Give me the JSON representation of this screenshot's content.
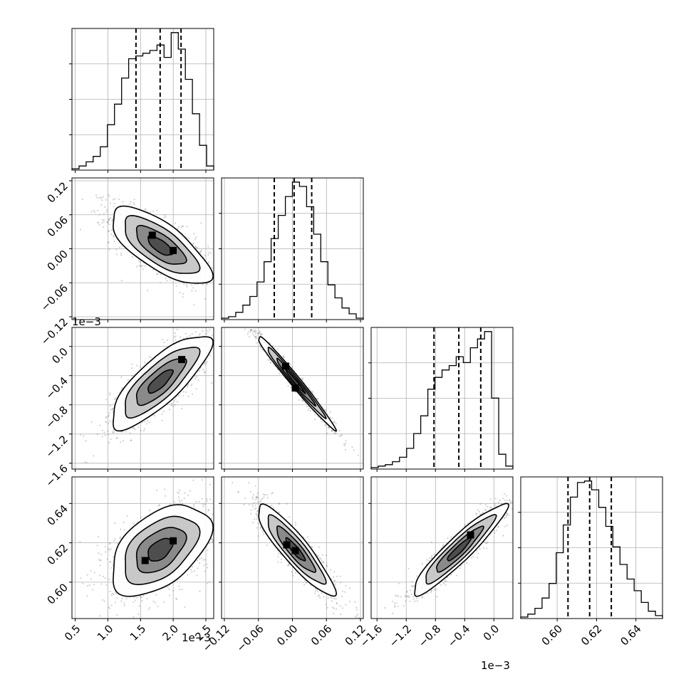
{
  "chart_data": {
    "type": "corner",
    "parameters": [
      {
        "range": [
          0.45,
          2.62
        ],
        "ticks": [
          "0.5",
          "1.0",
          "1.5",
          "2.0",
          "2.5"
        ],
        "tick_values": [
          0.5,
          1.0,
          1.5,
          2.0,
          2.5
        ],
        "offset_label": "1e−3",
        "quantiles": [
          1.43,
          1.8,
          2.12
        ]
      },
      {
        "range": [
          -0.125,
          0.125
        ],
        "ticks": [
          "−0.12",
          "−0.06",
          "0.00",
          "0.06",
          "0.12"
        ],
        "tick_values": [
          -0.12,
          -0.06,
          0.0,
          0.06,
          0.12
        ],
        "offset_label": "",
        "quantiles": [
          -0.032,
          0.003,
          0.034
        ]
      },
      {
        "range": [
          -1.68,
          0.26
        ],
        "ticks": [
          "−1.6",
          "−1.2",
          "−0.8",
          "−0.4",
          "0.0"
        ],
        "tick_values": [
          -1.6,
          -1.2,
          -0.8,
          -0.4,
          0.0
        ],
        "offset_label": "1e−3",
        "quantiles": [
          -0.82,
          -0.48,
          -0.18
        ]
      },
      {
        "range": [
          0.5815,
          0.6535
        ],
        "ticks": [
          "0.60",
          "0.62",
          "0.64"
        ],
        "tick_values": [
          0.6,
          0.62,
          0.64
        ],
        "offset_label": "",
        "quantiles": [
          0.6055,
          0.6165,
          0.6275
        ]
      }
    ],
    "histograms": [
      {
        "edges": [
          0.45,
          0.5585,
          0.667,
          0.7755,
          0.884,
          0.9925,
          1.101,
          1.2095,
          1.318,
          1.4265,
          1.535,
          1.6435,
          1.752,
          1.8605,
          1.969,
          2.0775,
          2.186,
          2.2945,
          2.403,
          2.5115,
          2.62
        ],
        "counts": [
          1,
          3,
          6,
          10,
          17,
          33,
          48,
          67,
          81,
          83,
          85,
          87,
          91,
          82,
          100,
          88,
          66,
          41,
          18,
          3
        ]
      },
      {
        "edges": [
          -0.125,
          -0.1125,
          -0.1,
          -0.0875,
          -0.075,
          -0.0625,
          -0.05,
          -0.0375,
          -0.025,
          -0.0125,
          0.0,
          0.0125,
          0.025,
          0.0375,
          0.05,
          0.0625,
          0.075,
          0.0875,
          0.1,
          0.1125,
          0.125
        ],
        "counts": [
          1,
          2,
          5,
          10,
          16,
          26,
          40,
          56,
          72,
          85,
          95,
          92,
          78,
          59,
          40,
          24,
          15,
          8,
          4,
          1
        ]
      },
      {
        "edges": [
          -1.68,
          -1.583,
          -1.486,
          -1.389,
          -1.292,
          -1.195,
          -1.098,
          -1.001,
          -0.904,
          -0.807,
          -0.71,
          -0.613,
          -0.516,
          -0.419,
          -0.322,
          -0.225,
          -0.128,
          -0.031,
          0.066,
          0.163,
          0.26
        ],
        "counts": [
          1,
          2,
          3,
          5,
          8,
          14,
          24,
          36,
          54,
          62,
          67,
          70,
          76,
          72,
          82,
          88,
          93,
          48,
          10,
          2
        ]
      },
      {
        "edges": [
          0.5815,
          0.5851,
          0.5887,
          0.5923,
          0.5959,
          0.5995,
          0.6031,
          0.6067,
          0.6103,
          0.6139,
          0.6175,
          0.6211,
          0.6247,
          0.6283,
          0.6319,
          0.6355,
          0.6391,
          0.6427,
          0.6463,
          0.6499,
          0.6535
        ],
        "counts": [
          1,
          3,
          7,
          14,
          24,
          45,
          64,
          83,
          93,
          94,
          88,
          76,
          63,
          49,
          37,
          27,
          19,
          11,
          5,
          2
        ]
      }
    ],
    "pairs": [
      {
        "row": 1,
        "col": 0,
        "mean": [
          1.8,
          0.005
        ],
        "sd": [
          0.38,
          0.034
        ],
        "rho": -0.72,
        "modes": [
          [
            1.68,
            0.024
          ],
          [
            2.0,
            -0.003
          ]
        ]
      },
      {
        "row": 2,
        "col": 0,
        "mean": [
          1.8,
          -0.48
        ],
        "sd": [
          0.38,
          0.32
        ],
        "rho": 0.8,
        "modes": [
          [
            2.13,
            -0.18
          ]
        ]
      },
      {
        "row": 2,
        "col": 1,
        "mean": [
          0.005,
          -0.48
        ],
        "sd": [
          0.034,
          0.32
        ],
        "rho": -0.985,
        "modes": [
          [
            -0.012,
            -0.27
          ],
          [
            0.005,
            -0.57
          ]
        ]
      },
      {
        "row": 3,
        "col": 0,
        "mean": [
          1.8,
          0.6165
        ],
        "sd": [
          0.38,
          0.0115
        ],
        "rho": 0.48,
        "modes": [
          [
            1.57,
            0.611
          ],
          [
            2.0,
            0.621
          ]
        ]
      },
      {
        "row": 3,
        "col": 1,
        "mean": [
          0.005,
          0.6165
        ],
        "sd": [
          0.034,
          0.0115
        ],
        "rho": -0.9,
        "modes": [
          [
            -0.01,
            0.619
          ],
          [
            0.005,
            0.616
          ]
        ]
      },
      {
        "row": 3,
        "col": 2,
        "mean": [
          -0.48,
          0.6165
        ],
        "sd": [
          0.32,
          0.0115
        ],
        "rho": 0.93,
        "modes": [
          [
            -0.32,
            0.624
          ]
        ]
      }
    ],
    "grid": true,
    "colors": {
      "line": "#000000",
      "points": "#7a7a7a",
      "grid": "#b0b0b0"
    }
  }
}
